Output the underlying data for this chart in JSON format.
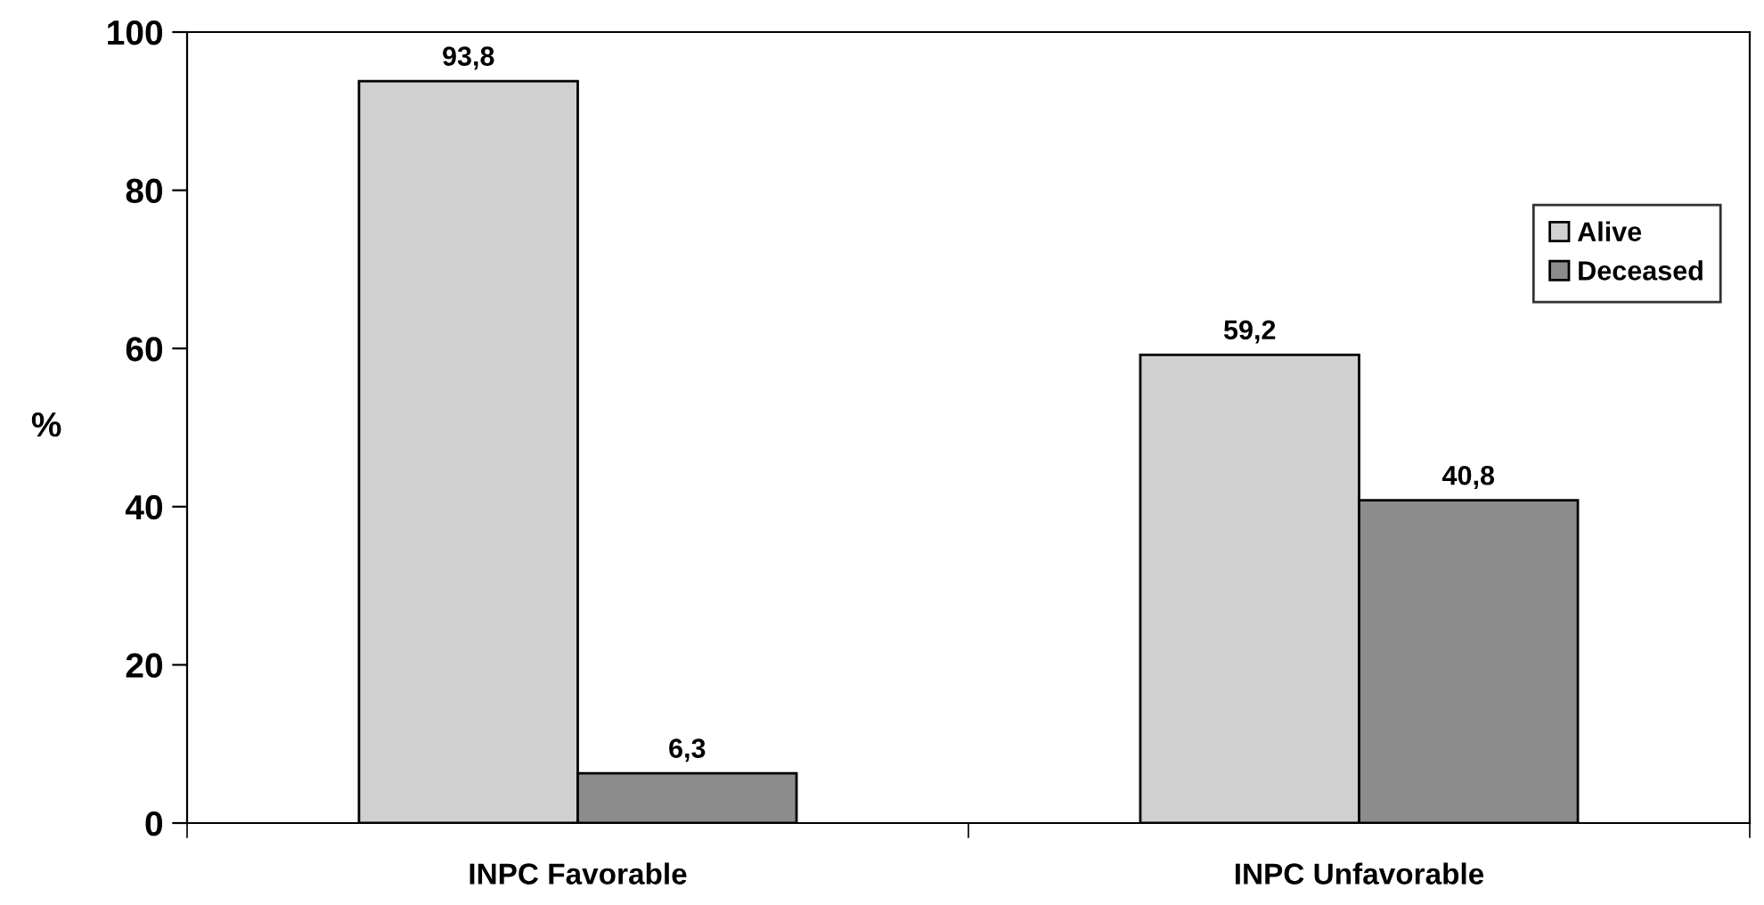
{
  "chart_data": {
    "type": "bar",
    "ylabel": "%",
    "categories": [
      "INPC Favorable",
      "INPC Unfavorable"
    ],
    "series": [
      {
        "name": "Alive",
        "color": "#d0d0d0",
        "values": [
          93.8,
          59.2
        ],
        "value_labels": [
          "93,8",
          "59,2"
        ]
      },
      {
        "name": "Deceased",
        "color": "#8c8c8c",
        "values": [
          6.3,
          40.8
        ],
        "value_labels": [
          "6,3",
          "40,8"
        ]
      }
    ],
    "ylim": [
      0,
      100
    ],
    "yticks": [
      0,
      20,
      40,
      60,
      80,
      100
    ],
    "grid": false,
    "legend": "right"
  }
}
